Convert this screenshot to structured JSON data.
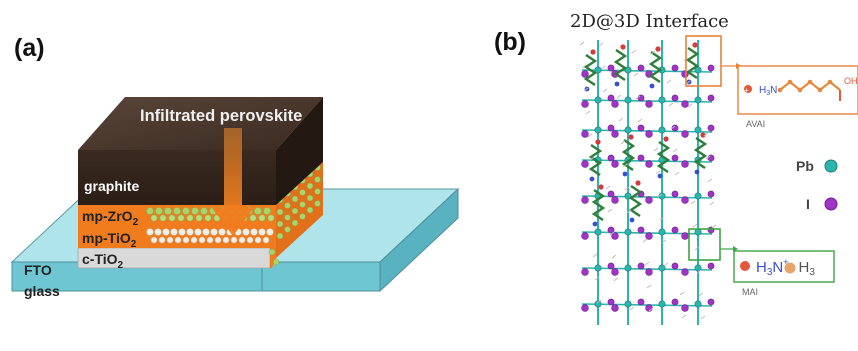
{
  "panel_a": {
    "label": "(a)",
    "arrow_label": "Infiltrated perovskite",
    "layers": {
      "graphite": "graphite",
      "zro2_base": "mp-ZrO",
      "zro2_sub": "2",
      "tio2_base": "mp-TiO",
      "tio2_sub": "2",
      "ctio2": "c-TiO",
      "ctio2_sub": "2",
      "fto": "FTO",
      "glass": "glass"
    }
  },
  "panel_b": {
    "label": "(b)",
    "title": "2D@3D Interface",
    "inset_avai": {
      "formula_base": "H",
      "formula_sub": "3",
      "formula_rest": "N",
      "tail": "OH",
      "caption": "AVAI"
    },
    "inset_mai": {
      "left": "H",
      "left_sub": "3",
      "mid": "N",
      "plus": "+",
      "right": "H",
      "right_sub": "3",
      "caption": "MAI"
    },
    "legend": [
      {
        "label": "Pb",
        "color": "#2bb5ad"
      },
      {
        "label": "I",
        "color": "#a033c8"
      }
    ]
  },
  "colors": {
    "graphite": "#2f2118",
    "orange": "#f07c1e",
    "glass": "#9fe0e8",
    "zro2_dot": "#a9d46c",
    "tio2_dot": "#f2ede4",
    "inset_orange": "#e8833a",
    "inset_green": "#3ea447"
  }
}
